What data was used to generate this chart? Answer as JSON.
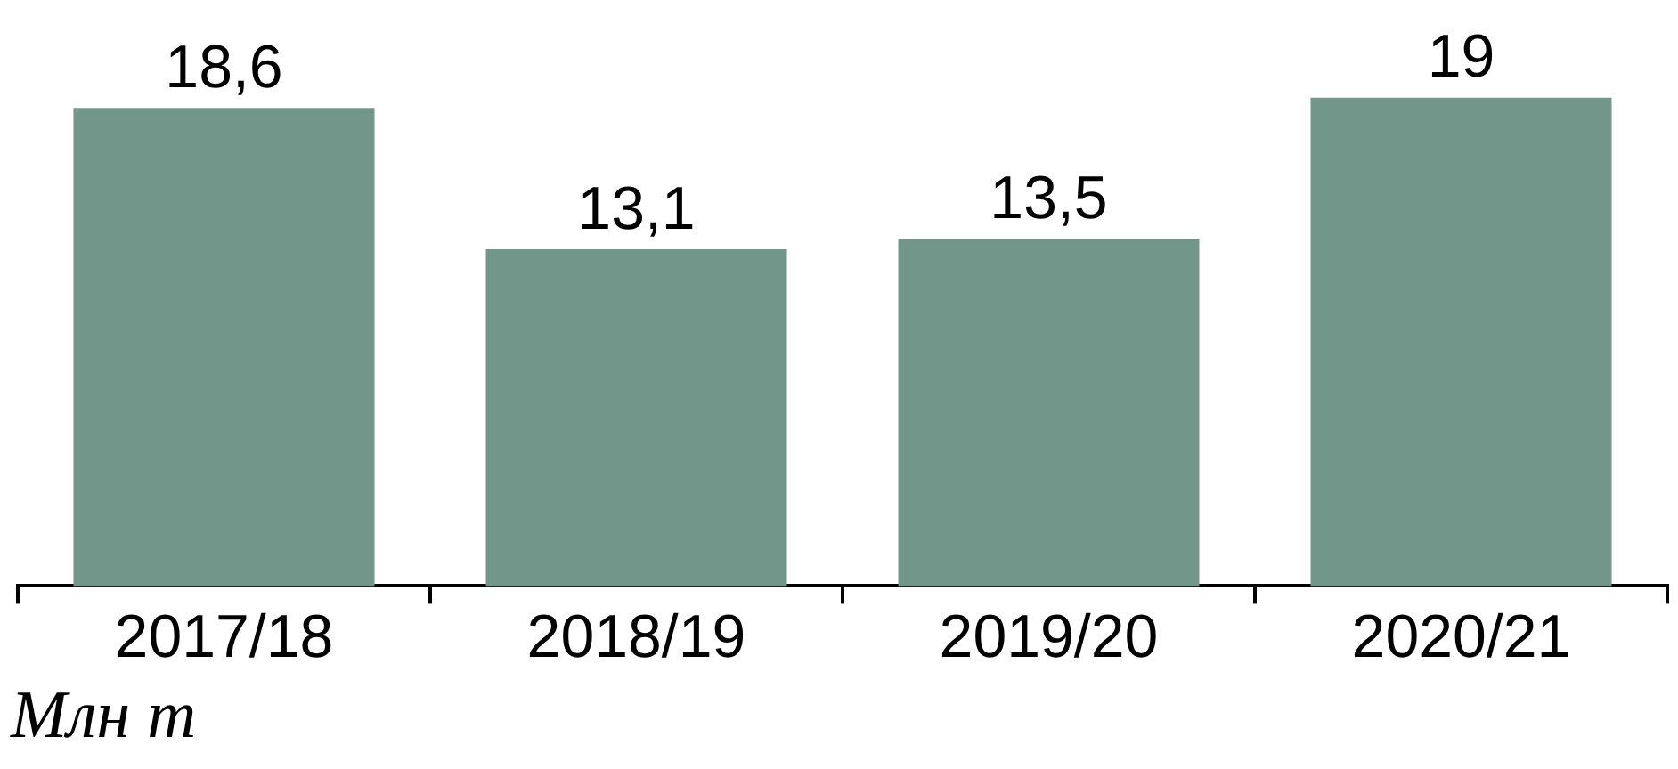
{
  "chart_data": {
    "type": "bar",
    "annotations": [
      "Млн т"
    ],
    "categories": [
      "2017/18",
      "2018/19",
      "2019/20",
      "2020/21"
    ],
    "values": [
      18.6,
      13.1,
      13.5,
      19
    ],
    "value_labels": [
      "18,6",
      "13,1",
      "13,5",
      "19"
    ],
    "color": "#72978a",
    "grid": false,
    "legend": false
  }
}
